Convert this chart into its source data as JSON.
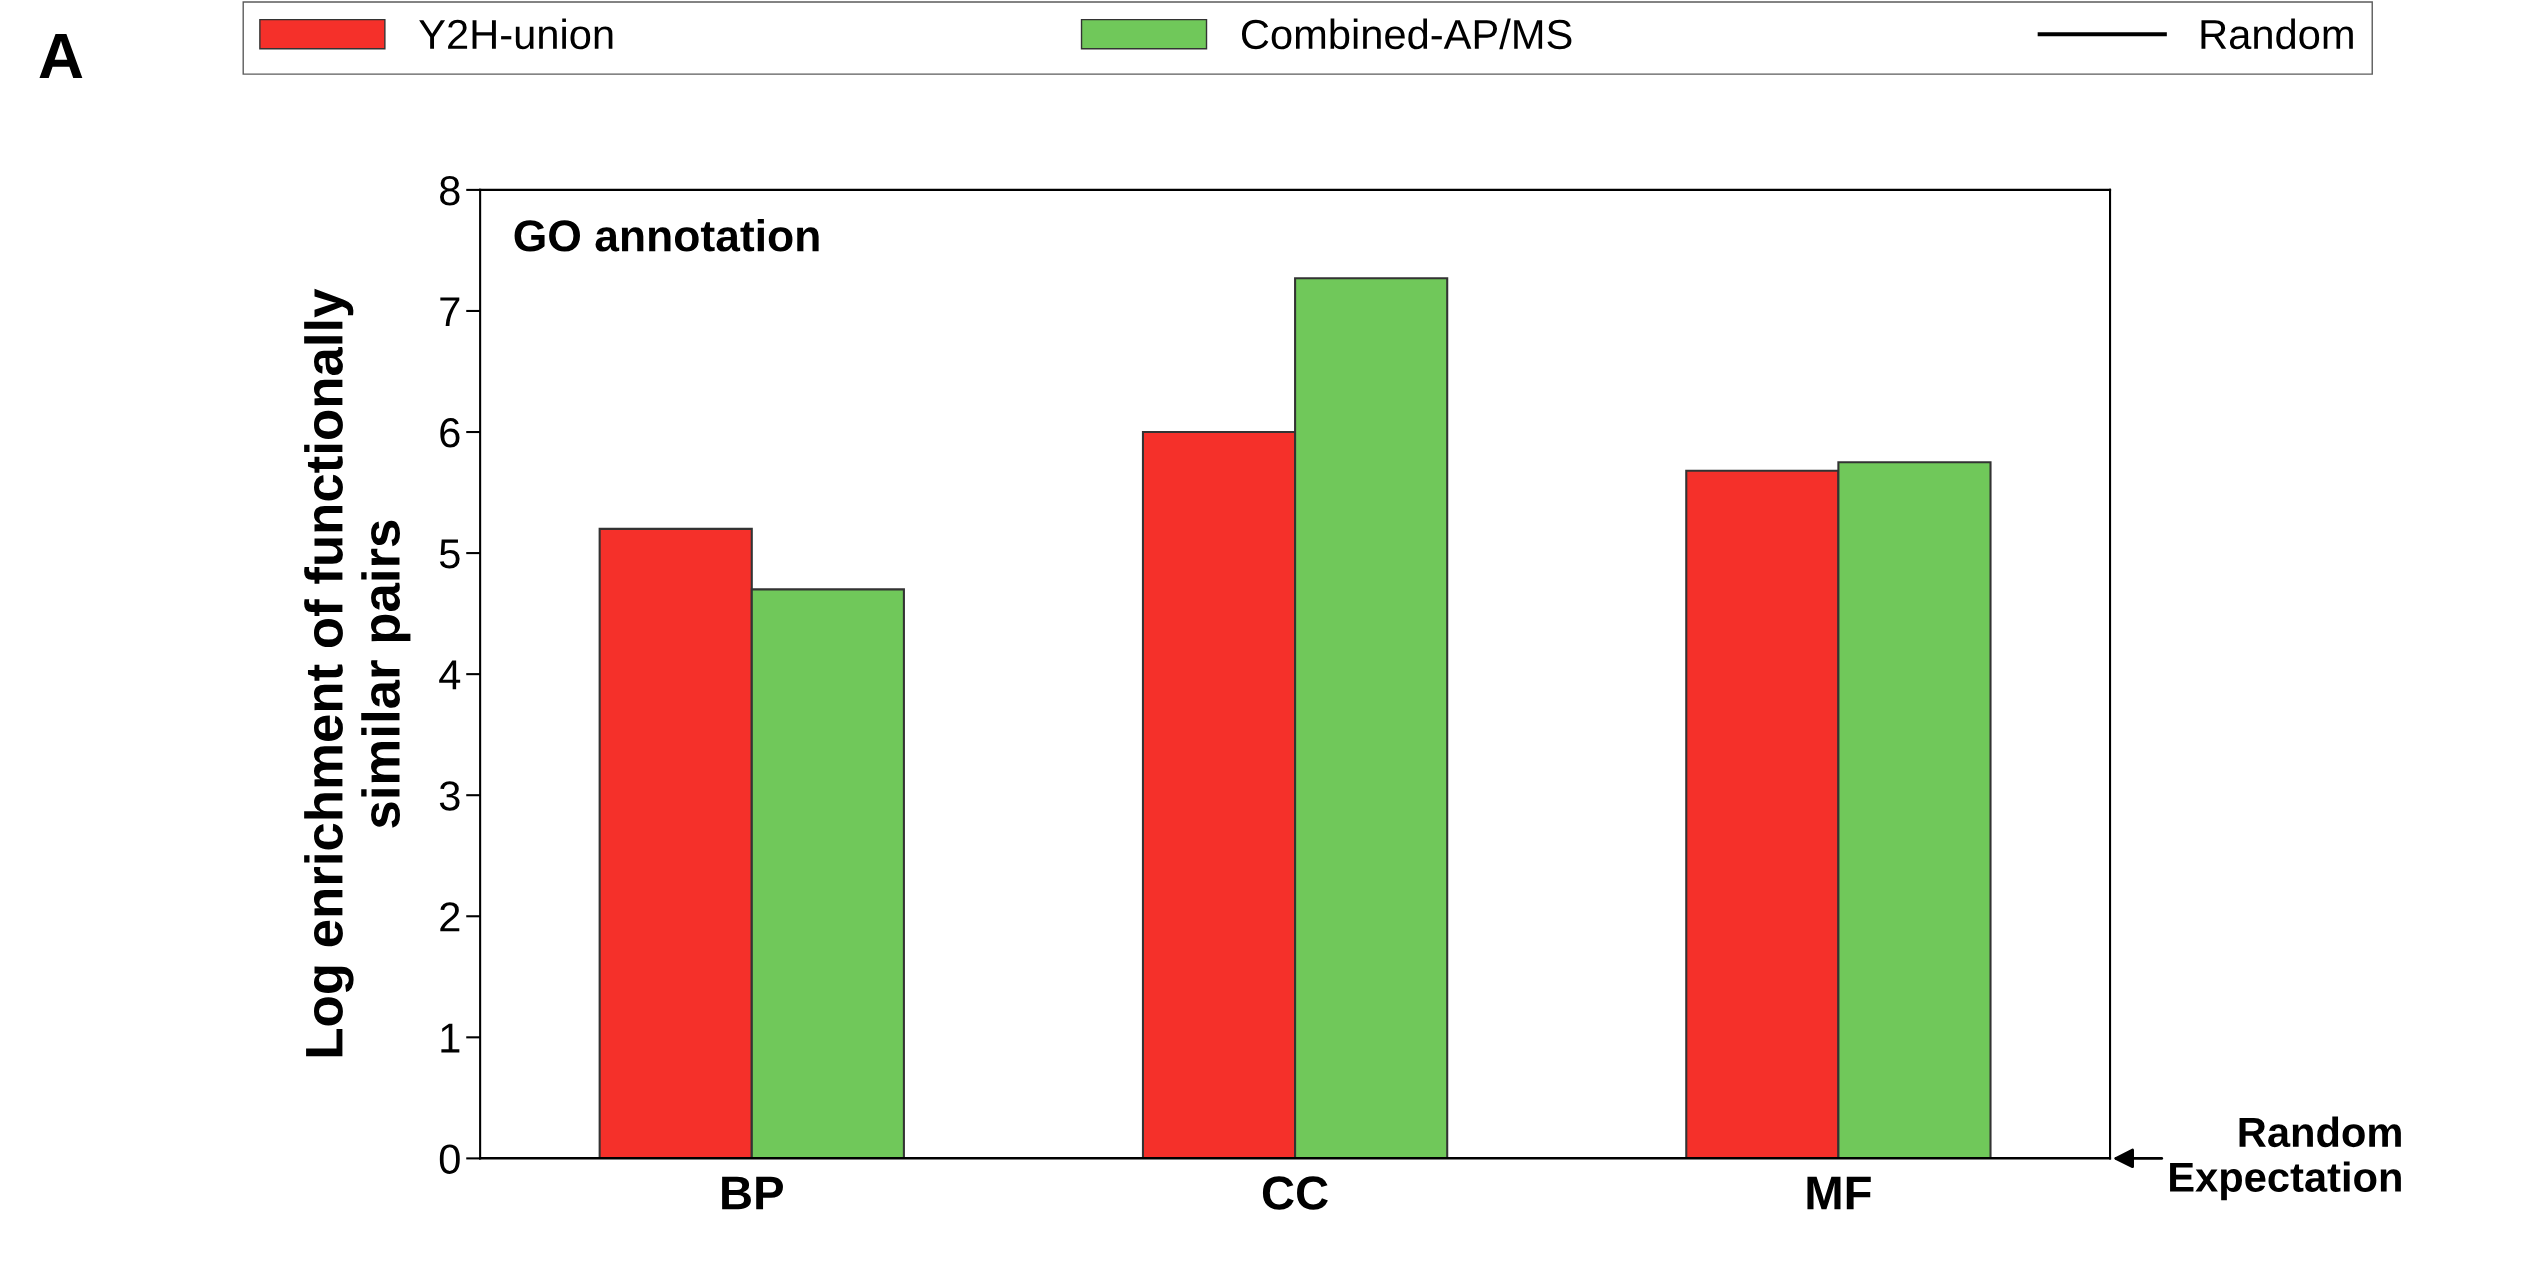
{
  "chart_data": {
    "type": "bar",
    "title": "GO annotation",
    "ylabel": "Log enrichment of functionally\nsimilar pairs",
    "categories": [
      "BP",
      "CC",
      "MF"
    ],
    "series": [
      {
        "name": "Y2H-union",
        "color": "#f5302a",
        "values": [
          5.2,
          6.0,
          5.68
        ]
      },
      {
        "name": "Combined-AP/MS",
        "color": "#70c85a",
        "values": [
          4.7,
          7.27,
          5.75
        ]
      }
    ],
    "ref_lines": [
      {
        "axis": "y",
        "value": 0,
        "label": "Random",
        "color": "#000000"
      }
    ],
    "ylim": [
      0,
      8
    ],
    "yticks": [
      0,
      1,
      2,
      3,
      4,
      5,
      6,
      7,
      8
    ],
    "grid": false,
    "legend": "top",
    "annotations": [
      "A",
      "Random\nExpectation"
    ]
  }
}
